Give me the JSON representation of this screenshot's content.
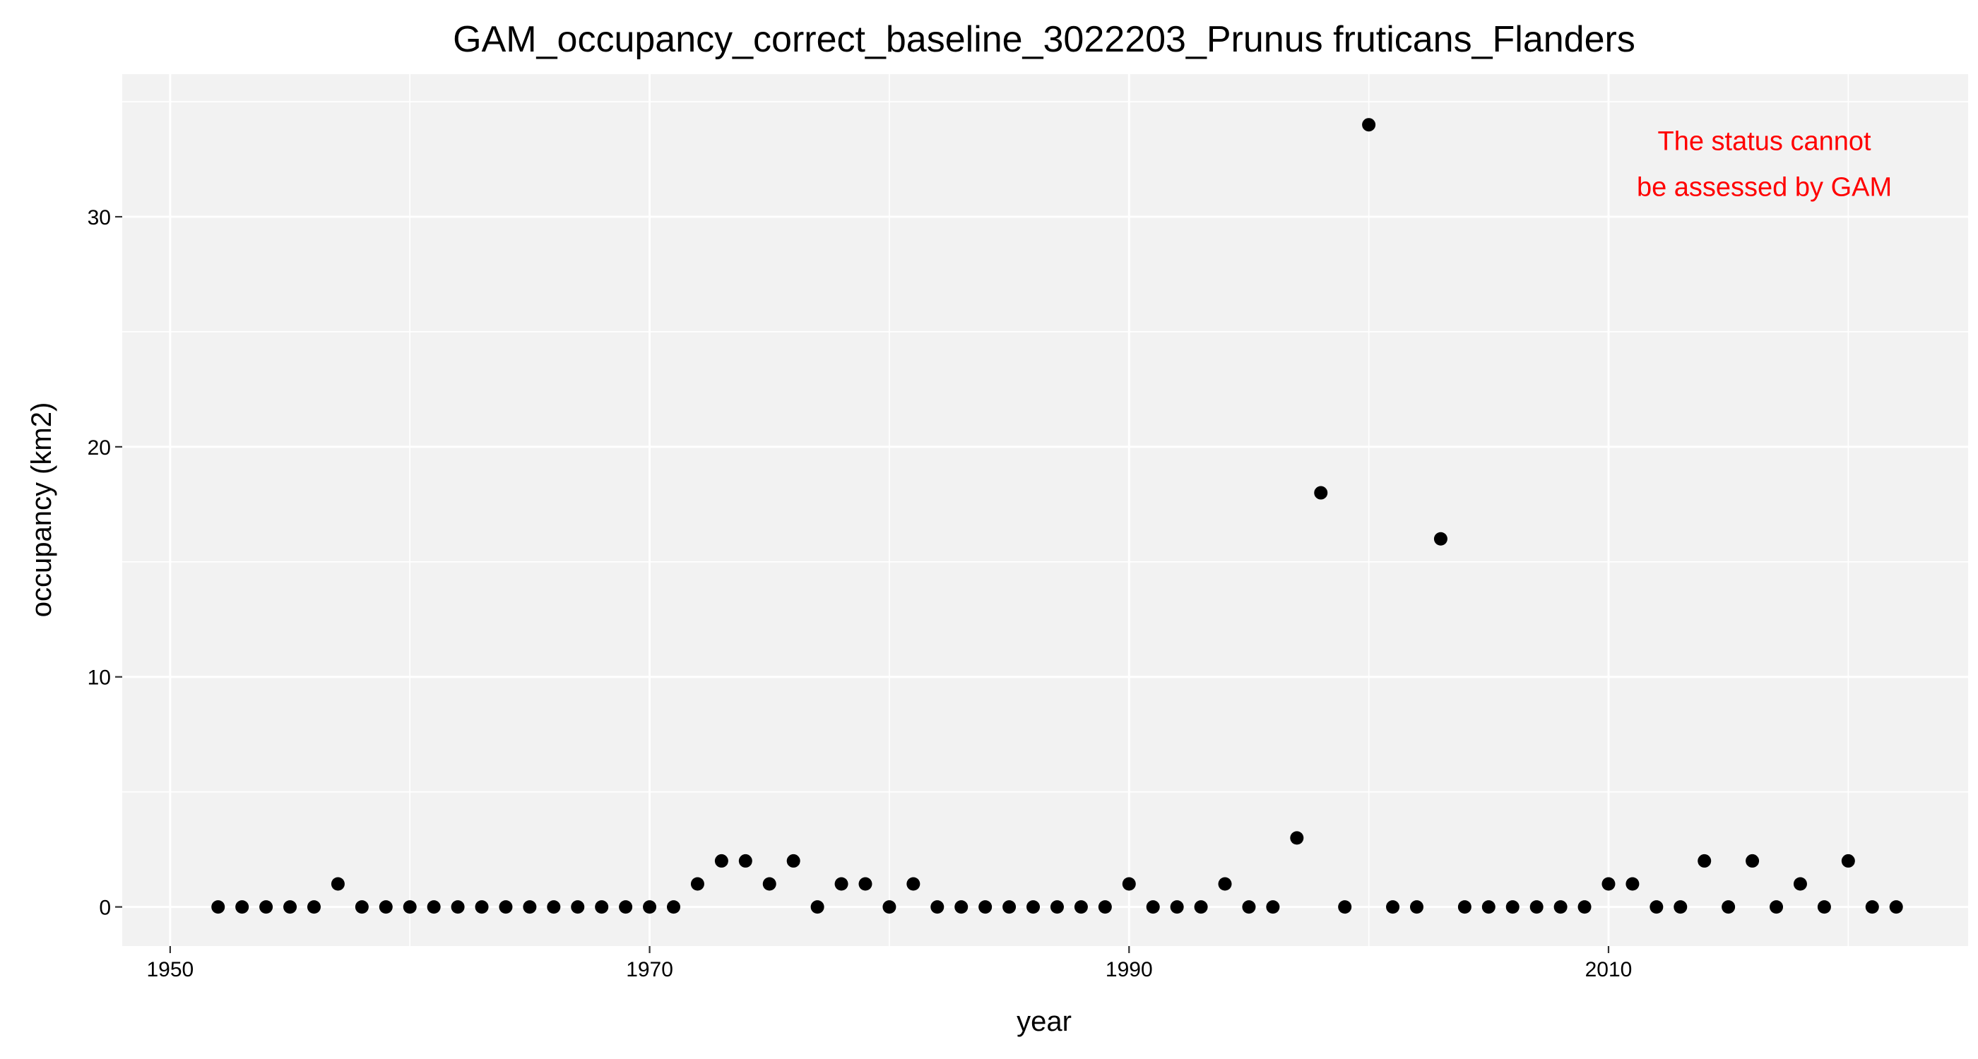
{
  "chart_data": {
    "type": "scatter",
    "title": "GAM_occupancy_correct_baseline_3022203_Prunus fruticans_Flanders",
    "xlabel": "year",
    "ylabel": "occupancy (km2)",
    "xlim": [
      1948,
      2025
    ],
    "ylim": [
      -1.7,
      36.2
    ],
    "x_ticks": [
      1950,
      1970,
      1990,
      2010
    ],
    "y_ticks": [
      0,
      10,
      20,
      30
    ],
    "grid": true,
    "legend": "none",
    "panel_color": "#f2f2f2",
    "grid_color": "#ffffff",
    "point_color": "#000000",
    "annotation": {
      "lines": [
        "The status cannot",
        "be assessed by GAM"
      ],
      "color": "#ff0000",
      "x": 2016.5,
      "y_lines": [
        33.3,
        31.3
      ]
    },
    "points": [
      {
        "x": 1952,
        "y": 0
      },
      {
        "x": 1953,
        "y": 0
      },
      {
        "x": 1954,
        "y": 0
      },
      {
        "x": 1955,
        "y": 0
      },
      {
        "x": 1956,
        "y": 0
      },
      {
        "x": 1957,
        "y": 1
      },
      {
        "x": 1958,
        "y": 0
      },
      {
        "x": 1959,
        "y": 0
      },
      {
        "x": 1960,
        "y": 0
      },
      {
        "x": 1961,
        "y": 0
      },
      {
        "x": 1962,
        "y": 0
      },
      {
        "x": 1963,
        "y": 0
      },
      {
        "x": 1964,
        "y": 0
      },
      {
        "x": 1965,
        "y": 0
      },
      {
        "x": 1966,
        "y": 0
      },
      {
        "x": 1967,
        "y": 0
      },
      {
        "x": 1968,
        "y": 0
      },
      {
        "x": 1969,
        "y": 0
      },
      {
        "x": 1970,
        "y": 0
      },
      {
        "x": 1971,
        "y": 0
      },
      {
        "x": 1972,
        "y": 1
      },
      {
        "x": 1973,
        "y": 2
      },
      {
        "x": 1974,
        "y": 2
      },
      {
        "x": 1975,
        "y": 1
      },
      {
        "x": 1976,
        "y": 2
      },
      {
        "x": 1977,
        "y": 0
      },
      {
        "x": 1978,
        "y": 1
      },
      {
        "x": 1979,
        "y": 1
      },
      {
        "x": 1980,
        "y": 0
      },
      {
        "x": 1981,
        "y": 1
      },
      {
        "x": 1982,
        "y": 0
      },
      {
        "x": 1983,
        "y": 0
      },
      {
        "x": 1984,
        "y": 0
      },
      {
        "x": 1985,
        "y": 0
      },
      {
        "x": 1986,
        "y": 0
      },
      {
        "x": 1987,
        "y": 0
      },
      {
        "x": 1988,
        "y": 0
      },
      {
        "x": 1989,
        "y": 0
      },
      {
        "x": 1990,
        "y": 1
      },
      {
        "x": 1991,
        "y": 0
      },
      {
        "x": 1992,
        "y": 0
      },
      {
        "x": 1993,
        "y": 0
      },
      {
        "x": 1994,
        "y": 1
      },
      {
        "x": 1995,
        "y": 0
      },
      {
        "x": 1996,
        "y": 0
      },
      {
        "x": 1997,
        "y": 3
      },
      {
        "x": 1998,
        "y": 18
      },
      {
        "x": 1999,
        "y": 0
      },
      {
        "x": 2000,
        "y": 34
      },
      {
        "x": 2001,
        "y": 0
      },
      {
        "x": 2002,
        "y": 0
      },
      {
        "x": 2003,
        "y": 16
      },
      {
        "x": 2004,
        "y": 0
      },
      {
        "x": 2005,
        "y": 0
      },
      {
        "x": 2006,
        "y": 0
      },
      {
        "x": 2007,
        "y": 0
      },
      {
        "x": 2008,
        "y": 0
      },
      {
        "x": 2009,
        "y": 0
      },
      {
        "x": 2010,
        "y": 1
      },
      {
        "x": 2011,
        "y": 1
      },
      {
        "x": 2012,
        "y": 0
      },
      {
        "x": 2013,
        "y": 0
      },
      {
        "x": 2014,
        "y": 2
      },
      {
        "x": 2015,
        "y": 0
      },
      {
        "x": 2016,
        "y": 2
      },
      {
        "x": 2017,
        "y": 0
      },
      {
        "x": 2018,
        "y": 1
      },
      {
        "x": 2019,
        "y": 0
      },
      {
        "x": 2020,
        "y": 2
      },
      {
        "x": 2021,
        "y": 0
      },
      {
        "x": 2022,
        "y": 0
      }
    ]
  }
}
